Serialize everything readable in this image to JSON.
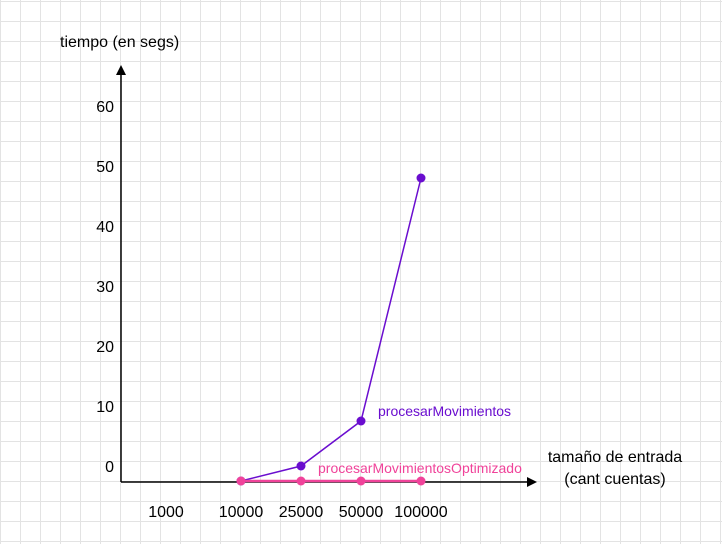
{
  "chart_data": {
    "type": "line",
    "ylabel": "tiempo (en segs)",
    "xlabel_lines": [
      "tamaño de entrada",
      "(cant cuentas)"
    ],
    "categories": [
      "1000",
      "10000",
      "25000",
      "50000",
      "100000"
    ],
    "y_ticks": [
      "0",
      "10",
      "20",
      "30",
      "40",
      "50",
      "60"
    ],
    "ylim": [
      0,
      60
    ],
    "grid": true,
    "series": [
      {
        "name": "procesarMovimientos",
        "color": "#6a0dcf",
        "x": [
          "10000",
          "25000",
          "50000",
          "100000"
        ],
        "values": [
          -2.5,
          0,
          7.5,
          48
        ]
      },
      {
        "name": "procesarMovimientosOptimizado",
        "color": "#f0439a",
        "x": [
          "10000",
          "25000",
          "50000",
          "100000"
        ],
        "values": [
          -2.5,
          -2.5,
          -2.5,
          -2.5
        ]
      }
    ]
  }
}
